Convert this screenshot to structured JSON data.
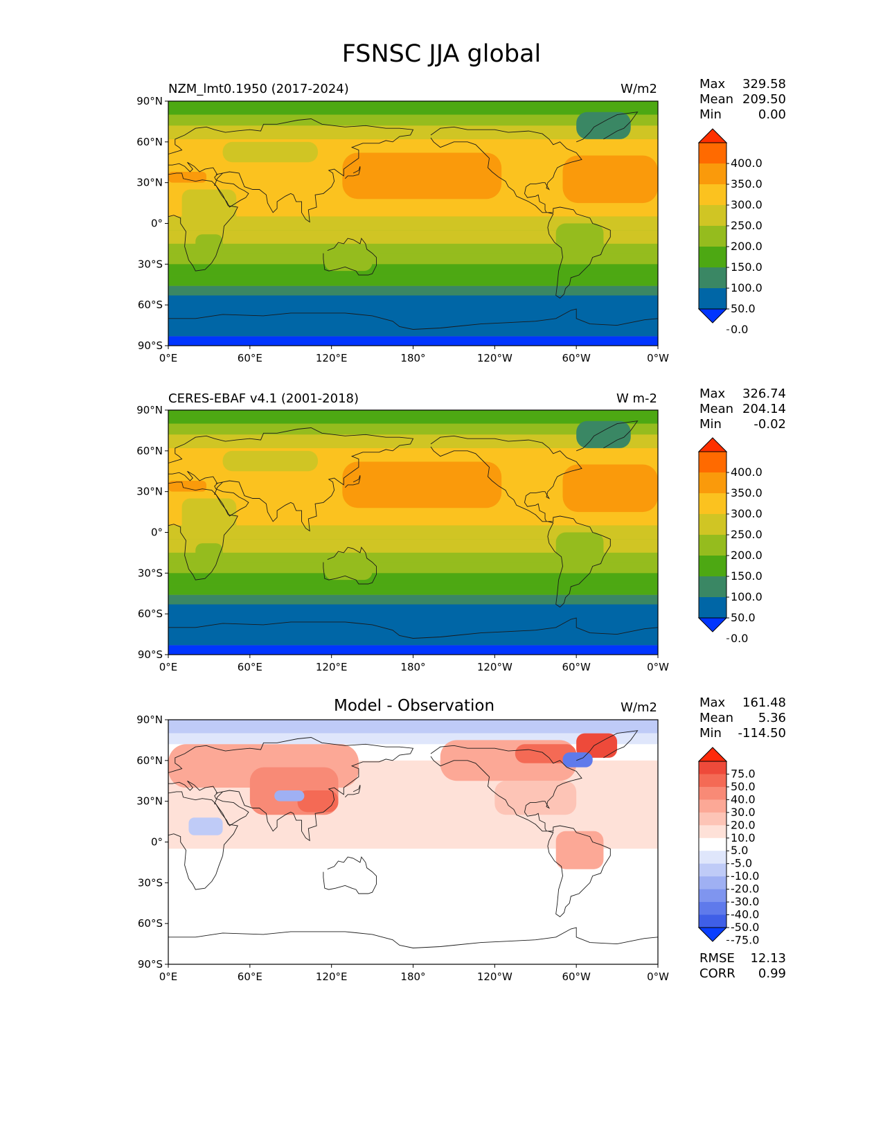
{
  "title": "FSNSC JJA global",
  "lon_ticks": [
    "0°E",
    "60°E",
    "120°E",
    "180°",
    "120°W",
    "60°W",
    "0°W"
  ],
  "lat_ticks": [
    "90°N",
    "60°N",
    "30°N",
    "0°",
    "30°S",
    "60°S",
    "90°S"
  ],
  "chart_data": [
    {
      "type": "heatmap",
      "id": "model",
      "left_label": "NZM_lmt0.1950 (2017-2024)",
      "center_label": "",
      "units": "W/m2",
      "stats": [
        {
          "k": "Max",
          "v": "329.58"
        },
        {
          "k": "Mean",
          "v": "209.50"
        },
        {
          "k": "Min",
          "v": "0.00"
        }
      ],
      "colorbar": {
        "labels": [
          "400.0",
          "350.0",
          "300.0",
          "250.0",
          "200.0",
          "150.0",
          "100.0",
          "50.0",
          "0.0"
        ],
        "colors": [
          "#ff3000",
          "#ff6a00",
          "#fa9a0b",
          "#fbc21f",
          "#d0c524",
          "#95bc1e",
          "#4da813",
          "#3a8764",
          "#0066a6",
          "#0035ff"
        ]
      },
      "xlim": [
        0,
        360
      ],
      "ylim": [
        -90,
        90
      ]
    },
    {
      "type": "heatmap",
      "id": "obs",
      "left_label": "CERES-EBAF v4.1 (2001-2018)",
      "center_label": "",
      "units": "W m-2",
      "stats": [
        {
          "k": "Max",
          "v": "326.74"
        },
        {
          "k": "Mean",
          "v": "204.14"
        },
        {
          "k": "Min",
          "v": "-0.02"
        }
      ],
      "colorbar": {
        "labels": [
          "400.0",
          "350.0",
          "300.0",
          "250.0",
          "200.0",
          "150.0",
          "100.0",
          "50.0",
          "0.0"
        ],
        "colors": [
          "#ff3000",
          "#ff6a00",
          "#fa9a0b",
          "#fbc21f",
          "#d0c524",
          "#95bc1e",
          "#4da813",
          "#3a8764",
          "#0066a6",
          "#0035ff"
        ]
      },
      "xlim": [
        0,
        360
      ],
      "ylim": [
        -90,
        90
      ]
    },
    {
      "type": "heatmap",
      "id": "diff",
      "left_label": "",
      "center_label": "Model - Observation",
      "units": "W/m2",
      "stats": [
        {
          "k": "Max",
          "v": "161.48"
        },
        {
          "k": "Mean",
          "v": "5.36"
        },
        {
          "k": "Min",
          "v": "-114.50"
        }
      ],
      "extra_stats": [
        {
          "k": "RMSE",
          "v": "12.13"
        },
        {
          "k": "CORR",
          "v": "0.99"
        }
      ],
      "colorbar": {
        "labels": [
          "75.0",
          "50.0",
          "40.0",
          "30.0",
          "20.0",
          "10.0",
          "5.0",
          "-5.0",
          "-10.0",
          "-20.0",
          "-30.0",
          "-40.0",
          "-50.0",
          "-75.0"
        ],
        "colors": [
          "#ff2a0a",
          "#ee4a3a",
          "#f46a55",
          "#f88a76",
          "#fca896",
          "#fdc4b6",
          "#fee1d8",
          "#ffffff",
          "#dfe6fb",
          "#bfcbf7",
          "#9fb0f3",
          "#7f95ef",
          "#5f7aeb",
          "#3f5fe7",
          "#0a3fff"
        ]
      },
      "xlim": [
        0,
        360
      ],
      "ylim": [
        -90,
        90
      ]
    }
  ]
}
